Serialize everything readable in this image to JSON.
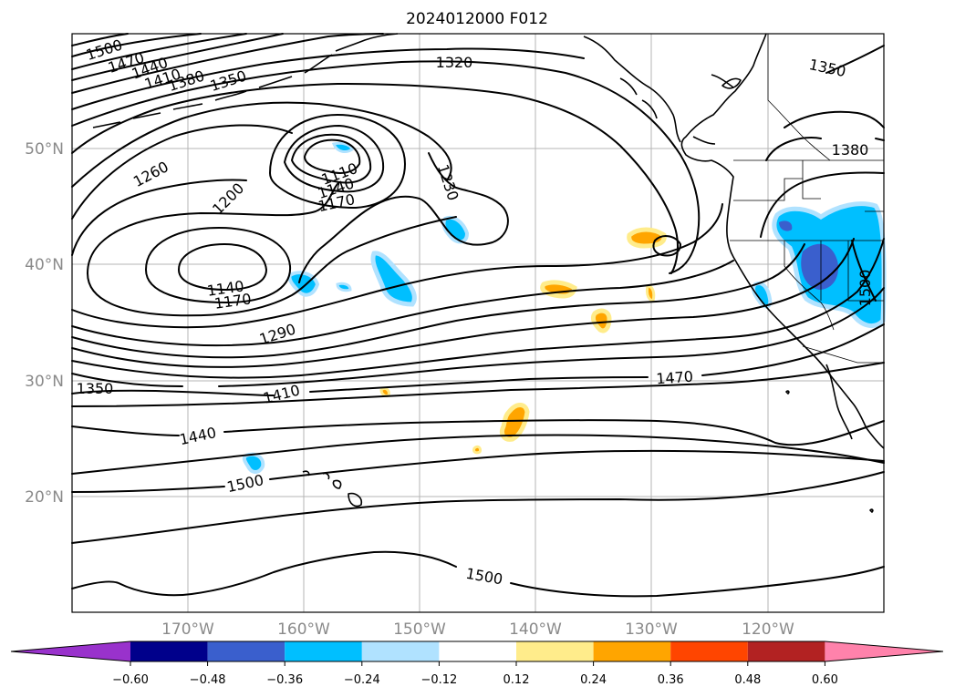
{
  "title": "2024012000 F012",
  "lat_labels": [
    "50°N",
    "40°N",
    "30°N",
    "20°N"
  ],
  "lon_labels": [
    "170°W",
    "160°W",
    "150°W",
    "140°W",
    "130°W",
    "120°W"
  ],
  "contour_labels": [
    "1500",
    "1470",
    "1440",
    "1410",
    "1380",
    "1350",
    "1320",
    "1350",
    "1380",
    "1260",
    "1200",
    "1110",
    "1140",
    "1170",
    "1230",
    "1140",
    "1170",
    "1290",
    "1350",
    "1410",
    "1440",
    "1500",
    "1470",
    "1500",
    "1500"
  ],
  "colorbar": {
    "ticks": [
      "−0.60",
      "−0.48",
      "−0.36",
      "−0.24",
      "−0.12",
      "0.12",
      "0.24",
      "0.36",
      "0.48",
      "0.60"
    ],
    "colors": [
      "#9932cc",
      "#00008b",
      "#3a5fcd",
      "#00bfff",
      "#b0e2ff",
      "#ffffff",
      "#ffec8b",
      "#ffa500",
      "#ff4500",
      "#b22222",
      "#ff82ab"
    ]
  }
}
